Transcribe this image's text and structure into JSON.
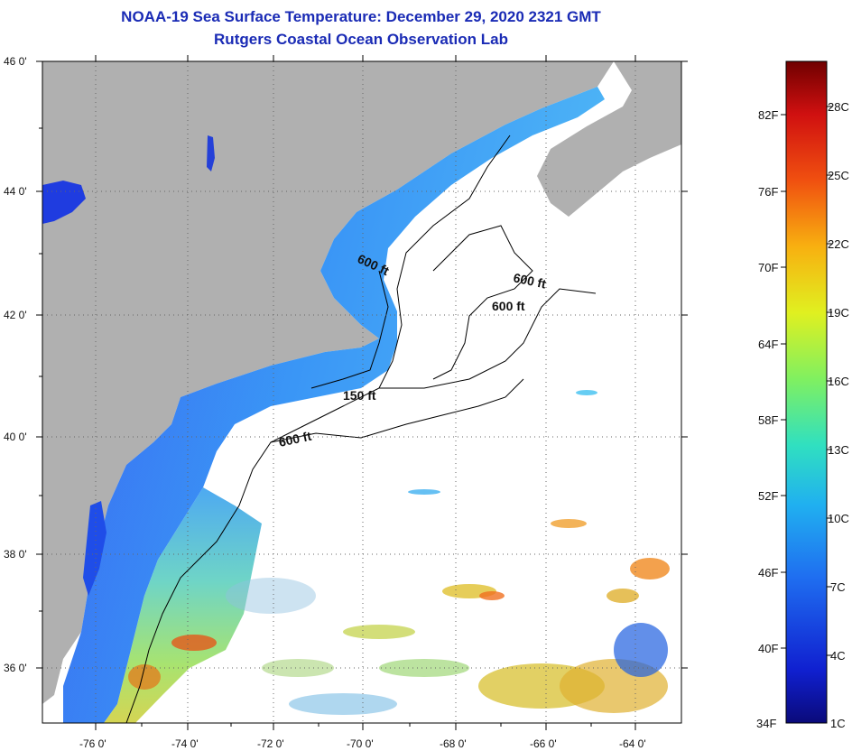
{
  "header": {
    "title": "NOAA-19 Sea Surface Temperature:  December 29, 2020 2321 GMT",
    "subtitle": "Rutgers Coastal Ocean Observation Lab"
  },
  "map": {
    "lat_labels": [
      "46 0'",
      "44 0'",
      "42 0'",
      "40 0'",
      "38 0'",
      "36 0'"
    ],
    "lon_labels": [
      "-76 0'",
      "-74 0'",
      "-72 0'",
      "-70 0'",
      "-68 0'",
      "-66 0'",
      "-64 0'"
    ],
    "depth_labels": [
      "600 ft",
      "600 ft",
      "600 ft",
      "150 ft",
      "600 ft"
    ],
    "colors": {
      "land": "#b0b0b0",
      "cloud": "#ffffff",
      "cold": "#1f3ce0",
      "mid": "#23a8f0",
      "warm": "#f0c020"
    }
  },
  "colorbar": {
    "fahrenheit": [
      "82F",
      "76F",
      "70F",
      "64F",
      "58F",
      "52F",
      "46F",
      "40F",
      "34F"
    ],
    "celsius": [
      "28C",
      "25C",
      "22C",
      "19C",
      "16C",
      "13C",
      "10C",
      "7C",
      "4C",
      "1C"
    ]
  }
}
